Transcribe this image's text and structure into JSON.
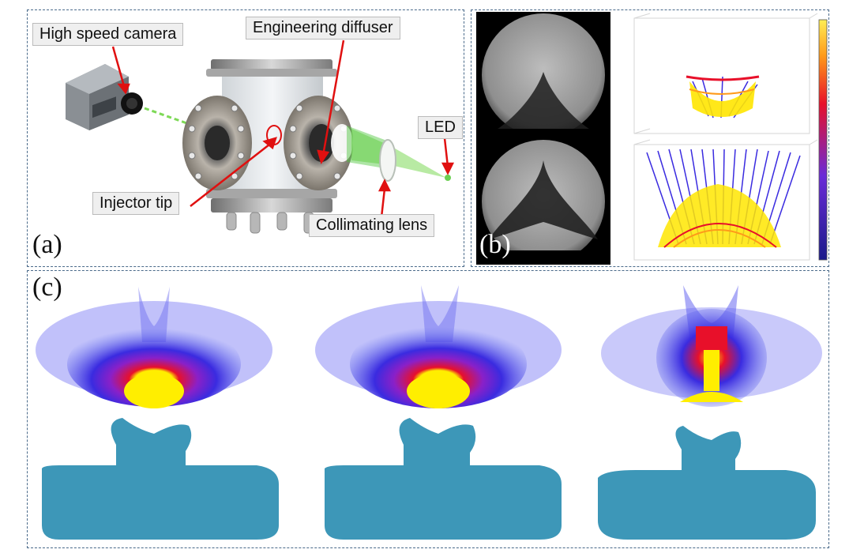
{
  "panel_a": {
    "label": "(a)",
    "callouts": {
      "camera": "High speed camera",
      "diffuser": "Engineering diffuser",
      "led": "LED",
      "injector": "Injector tip",
      "lens": "Collimating  lens"
    }
  },
  "panel_b": {
    "label": "(b)"
  },
  "panel_c": {
    "label": "(c)"
  },
  "colors": {
    "frame": "#4a6a8a",
    "arrow": "#e01010",
    "beam": "#7ed957",
    "spray_blue": "#3a2be0",
    "spray_red": "#e8102a",
    "spray_yellow": "#ffee00",
    "teal": "#3d97b8"
  }
}
